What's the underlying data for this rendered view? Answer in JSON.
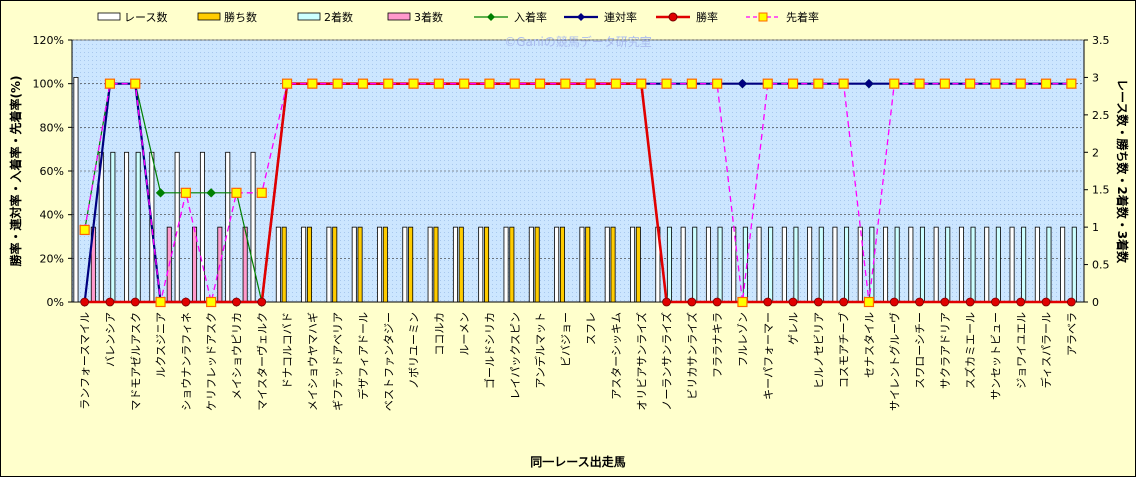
{
  "chart_data": {
    "type": "bar",
    "watermark": "©Ganiの競馬データ研究室",
    "xlabel": "同一レース出走馬",
    "ylabel_left": "勝率・連対率・入着率・先着率(%)",
    "ylabel_right": "レース数・勝ち数・2着数・3着数",
    "y_left_ticks": [
      "0%",
      "20%",
      "40%",
      "60%",
      "80%",
      "100%",
      "120%"
    ],
    "y_right_ticks": [
      "0",
      "0.5",
      "1",
      "1.5",
      "2",
      "2.5",
      "3",
      "3.5"
    ],
    "ylim_left": [
      0,
      120
    ],
    "ylim_right": [
      0,
      3.5
    ],
    "grid": true,
    "legend_position": "top",
    "categories": [
      "ランフォースマイル",
      "バレンシア",
      "マドモアゼルアスク",
      "ルクスジニア",
      "ショウナンラフィネ",
      "ケリフレッドアスク",
      "メイショウピリカ",
      "マイスターヴェルク",
      "ドナコルコバド",
      "メイショウヤマハギ",
      "ギフテッドアベリア",
      "デザフィアドール",
      "ベストファンタジー",
      "ノボリユーミン",
      "ココルカ",
      "ルーメン",
      "ゴールドシリカ",
      "レイパックスピン",
      "アンデルマット",
      "ビバジョー",
      "スフレ",
      "アスターシッキム",
      "オリビアサンライズ",
      "ノーランサンライズ",
      "ビリカサンライズ",
      "フララナキラ",
      "フルレゾン",
      "キーパフォーマー",
      "ゲレル",
      "ヒルノセビリア",
      "コスモアチーブ",
      "セナスタイル",
      "サイレントグルーヴ",
      "スワローシチー",
      "サクラアドリア",
      "スズカミエール",
      "サンセットビュー",
      "ジョワイユエル",
      "ディスパラール",
      "アラベラ"
    ],
    "series": [
      {
        "name": "レース数",
        "color": "#ffffff",
        "values": [
          3,
          2,
          2,
          2,
          2,
          2,
          2,
          2,
          1,
          1,
          1,
          1,
          1,
          1,
          1,
          1,
          1,
          1,
          1,
          1,
          1,
          1,
          1,
          1,
          1,
          1,
          1,
          1,
          1,
          1,
          1,
          1,
          1,
          1,
          1,
          1,
          1,
          1,
          1,
          1
        ]
      },
      {
        "name": "勝ち数",
        "color": "#ffcc00",
        "values": [
          0,
          0,
          0,
          0,
          0,
          0,
          0,
          0,
          1,
          1,
          1,
          1,
          1,
          1,
          1,
          1,
          1,
          1,
          1,
          1,
          1,
          1,
          1,
          0,
          0,
          0,
          0,
          0,
          0,
          0,
          0,
          0,
          0,
          0,
          0,
          0,
          0,
          0,
          0,
          0
        ]
      },
      {
        "name": "2着数",
        "color": "#ccffff",
        "values": [
          0,
          2,
          2,
          0,
          0,
          0,
          0,
          0,
          0,
          0,
          0,
          0,
          0,
          0,
          0,
          0,
          0,
          0,
          0,
          0,
          0,
          0,
          0,
          1,
          1,
          1,
          1,
          1,
          1,
          1,
          1,
          1,
          1,
          1,
          1,
          1,
          1,
          1,
          1,
          1
        ]
      },
      {
        "name": "3着数",
        "color": "#ff99cc",
        "values": [
          1,
          0,
          0,
          1,
          1,
          1,
          1,
          0,
          0,
          0,
          0,
          0,
          0,
          0,
          0,
          0,
          0,
          0,
          0,
          0,
          0,
          0,
          0,
          0,
          0,
          0,
          0,
          0,
          0,
          0,
          0,
          0,
          0,
          0,
          0,
          0,
          0,
          0,
          0,
          0
        ]
      },
      {
        "name": "入着率",
        "color": "#008000",
        "values": [
          33,
          100,
          100,
          50,
          50,
          50,
          50,
          0,
          100,
          100,
          100,
          100,
          100,
          100,
          100,
          100,
          100,
          100,
          100,
          100,
          100,
          100,
          100,
          100,
          100,
          100,
          100,
          100,
          100,
          100,
          100,
          100,
          100,
          100,
          100,
          100,
          100,
          100,
          100,
          100
        ]
      },
      {
        "name": "連対率",
        "color": "#000080",
        "values": [
          0,
          100,
          100,
          0,
          0,
          0,
          0,
          0,
          100,
          100,
          100,
          100,
          100,
          100,
          100,
          100,
          100,
          100,
          100,
          100,
          100,
          100,
          100,
          100,
          100,
          100,
          100,
          100,
          100,
          100,
          100,
          100,
          100,
          100,
          100,
          100,
          100,
          100,
          100,
          100
        ]
      },
      {
        "name": "勝率",
        "color": "#e00000",
        "values": [
          0,
          0,
          0,
          0,
          0,
          0,
          0,
          0,
          100,
          100,
          100,
          100,
          100,
          100,
          100,
          100,
          100,
          100,
          100,
          100,
          100,
          100,
          100,
          0,
          0,
          0,
          0,
          0,
          0,
          0,
          0,
          0,
          0,
          0,
          0,
          0,
          0,
          0,
          0,
          0
        ]
      },
      {
        "name": "先着率",
        "color": "#ff00ff",
        "values": [
          33,
          100,
          100,
          0,
          50,
          0,
          50,
          50,
          100,
          100,
          100,
          100,
          100,
          100,
          100,
          100,
          100,
          100,
          100,
          100,
          100,
          100,
          100,
          100,
          100,
          100,
          0,
          100,
          100,
          100,
          100,
          0,
          100,
          100,
          100,
          100,
          100,
          100,
          100,
          100
        ]
      }
    ]
  }
}
